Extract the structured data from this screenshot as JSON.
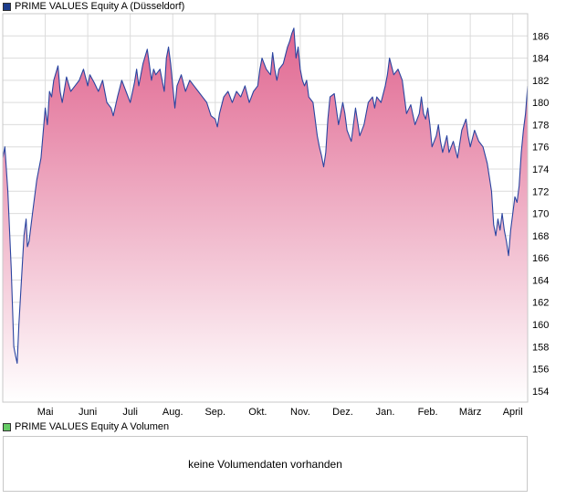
{
  "legend_price": {
    "label": "PRIME VALUES Equity A (Düsseldorf)",
    "color": "#1c3c8c"
  },
  "legend_volume": {
    "label": "PRIME VALUES Equity A Volumen",
    "color": "#66cc66"
  },
  "volume_panel": {
    "message": "keine Volumendaten vorhanden"
  },
  "colors": {
    "line": "#2a44a0",
    "fill_top": "#e06690",
    "fill_bottom": "#ffffff",
    "grid": "#dcdcdc",
    "frame": "#c8c8c8"
  },
  "chart_data": {
    "type": "area",
    "title": "PRIME VALUES Equity A (Düsseldorf)",
    "xlabel": "",
    "ylabel": "",
    "ylim": [
      153,
      188
    ],
    "y_ticks": [
      154,
      156,
      158,
      160,
      162,
      164,
      166,
      168,
      170,
      172,
      174,
      176,
      178,
      180,
      182,
      184,
      186
    ],
    "x_range": [
      0,
      12.35
    ],
    "x_ticks": [
      {
        "label": "Mai",
        "x": 1
      },
      {
        "label": "Juni",
        "x": 2
      },
      {
        "label": "Juli",
        "x": 3
      },
      {
        "label": "Aug.",
        "x": 4
      },
      {
        "label": "Sep.",
        "x": 5
      },
      {
        "label": "Okt.",
        "x": 6
      },
      {
        "label": "Nov.",
        "x": 7
      },
      {
        "label": "Dez.",
        "x": 8
      },
      {
        "label": "Jan.",
        "x": 9
      },
      {
        "label": "Feb.",
        "x": 10
      },
      {
        "label": "März",
        "x": 11
      },
      {
        "label": "April",
        "x": 12
      }
    ],
    "grid": true,
    "series": [
      {
        "name": "PRIME VALUES Equity A",
        "points": [
          [
            0.0,
            175.0
          ],
          [
            0.05,
            176.0
          ],
          [
            0.12,
            172.0
          ],
          [
            0.2,
            165.0
          ],
          [
            0.26,
            158.0
          ],
          [
            0.3,
            157.2
          ],
          [
            0.34,
            156.5
          ],
          [
            0.38,
            160.0
          ],
          [
            0.44,
            164.0
          ],
          [
            0.5,
            168.0
          ],
          [
            0.55,
            169.5
          ],
          [
            0.58,
            167.0
          ],
          [
            0.62,
            167.5
          ],
          [
            0.7,
            170.0
          ],
          [
            0.8,
            173.0
          ],
          [
            0.9,
            175.0
          ],
          [
            1.0,
            179.5
          ],
          [
            1.05,
            178.0
          ],
          [
            1.1,
            181.0
          ],
          [
            1.15,
            180.5
          ],
          [
            1.2,
            182.0
          ],
          [
            1.3,
            183.3
          ],
          [
            1.35,
            181.0
          ],
          [
            1.4,
            180.0
          ],
          [
            1.5,
            182.3
          ],
          [
            1.6,
            181.0
          ],
          [
            1.7,
            181.5
          ],
          [
            1.8,
            182.0
          ],
          [
            1.9,
            183.0
          ],
          [
            2.0,
            181.5
          ],
          [
            2.05,
            182.5
          ],
          [
            2.15,
            181.8
          ],
          [
            2.25,
            181.0
          ],
          [
            2.35,
            182.0
          ],
          [
            2.45,
            180.0
          ],
          [
            2.55,
            179.5
          ],
          [
            2.6,
            178.8
          ],
          [
            2.7,
            180.5
          ],
          [
            2.8,
            182.0
          ],
          [
            2.9,
            181.0
          ],
          [
            3.0,
            180.0
          ],
          [
            3.1,
            181.8
          ],
          [
            3.15,
            183.0
          ],
          [
            3.2,
            181.5
          ],
          [
            3.3,
            183.5
          ],
          [
            3.4,
            184.8
          ],
          [
            3.5,
            182.0
          ],
          [
            3.55,
            183.0
          ],
          [
            3.6,
            182.5
          ],
          [
            3.7,
            183.0
          ],
          [
            3.8,
            181.0
          ],
          [
            3.85,
            184.0
          ],
          [
            3.9,
            185.0
          ],
          [
            3.95,
            183.5
          ],
          [
            4.0,
            181.5
          ],
          [
            4.05,
            179.5
          ],
          [
            4.1,
            181.5
          ],
          [
            4.2,
            182.5
          ],
          [
            4.3,
            181.0
          ],
          [
            4.4,
            182.0
          ],
          [
            4.5,
            181.5
          ],
          [
            4.6,
            181.0
          ],
          [
            4.7,
            180.5
          ],
          [
            4.8,
            180.0
          ],
          [
            4.9,
            178.8
          ],
          [
            5.0,
            178.5
          ],
          [
            5.05,
            177.8
          ],
          [
            5.1,
            179.0
          ],
          [
            5.2,
            180.5
          ],
          [
            5.3,
            181.0
          ],
          [
            5.4,
            180.0
          ],
          [
            5.5,
            181.0
          ],
          [
            5.6,
            180.5
          ],
          [
            5.7,
            181.5
          ],
          [
            5.8,
            180.0
          ],
          [
            5.9,
            181.0
          ],
          [
            6.0,
            181.5
          ],
          [
            6.05,
            183.0
          ],
          [
            6.1,
            184.0
          ],
          [
            6.2,
            183.0
          ],
          [
            6.3,
            182.5
          ],
          [
            6.35,
            184.5
          ],
          [
            6.4,
            183.0
          ],
          [
            6.45,
            182.0
          ],
          [
            6.5,
            183.0
          ],
          [
            6.6,
            183.5
          ],
          [
            6.7,
            185.0
          ],
          [
            6.75,
            185.5
          ],
          [
            6.8,
            186.2
          ],
          [
            6.85,
            186.7
          ],
          [
            6.9,
            184.0
          ],
          [
            6.95,
            185.0
          ],
          [
            7.0,
            183.0
          ],
          [
            7.05,
            182.0
          ],
          [
            7.1,
            181.5
          ],
          [
            7.15,
            182.0
          ],
          [
            7.2,
            180.5
          ],
          [
            7.3,
            180.0
          ],
          [
            7.4,
            177.0
          ],
          [
            7.45,
            176.0
          ],
          [
            7.5,
            175.2
          ],
          [
            7.55,
            174.2
          ],
          [
            7.6,
            175.5
          ],
          [
            7.65,
            178.5
          ],
          [
            7.7,
            180.5
          ],
          [
            7.8,
            180.8
          ],
          [
            7.9,
            178.0
          ],
          [
            8.0,
            180.0
          ],
          [
            8.05,
            179.0
          ],
          [
            8.1,
            177.5
          ],
          [
            8.2,
            176.5
          ],
          [
            8.3,
            179.5
          ],
          [
            8.4,
            177.0
          ],
          [
            8.5,
            178.0
          ],
          [
            8.6,
            180.0
          ],
          [
            8.7,
            180.5
          ],
          [
            8.75,
            179.5
          ],
          [
            8.8,
            180.5
          ],
          [
            8.9,
            180.0
          ],
          [
            9.0,
            181.5
          ],
          [
            9.05,
            182.5
          ],
          [
            9.1,
            184.0
          ],
          [
            9.2,
            182.5
          ],
          [
            9.3,
            183.0
          ],
          [
            9.4,
            182.0
          ],
          [
            9.45,
            180.5
          ],
          [
            9.5,
            179.0
          ],
          [
            9.6,
            179.8
          ],
          [
            9.7,
            178.0
          ],
          [
            9.8,
            179.0
          ],
          [
            9.85,
            180.5
          ],
          [
            9.9,
            179.0
          ],
          [
            9.95,
            178.5
          ],
          [
            10.0,
            179.5
          ],
          [
            10.05,
            178.0
          ],
          [
            10.1,
            176.0
          ],
          [
            10.2,
            177.0
          ],
          [
            10.25,
            178.0
          ],
          [
            10.3,
            176.5
          ],
          [
            10.35,
            175.5
          ],
          [
            10.45,
            177.0
          ],
          [
            10.5,
            175.5
          ],
          [
            10.6,
            176.5
          ],
          [
            10.7,
            175.0
          ],
          [
            10.8,
            177.5
          ],
          [
            10.9,
            178.5
          ],
          [
            10.95,
            177.0
          ],
          [
            11.0,
            176.0
          ],
          [
            11.1,
            177.5
          ],
          [
            11.2,
            176.5
          ],
          [
            11.3,
            176.0
          ],
          [
            11.4,
            174.5
          ],
          [
            11.5,
            172.0
          ],
          [
            11.55,
            169.0
          ],
          [
            11.6,
            168.0
          ],
          [
            11.65,
            169.5
          ],
          [
            11.7,
            168.5
          ],
          [
            11.75,
            170.0
          ],
          [
            11.8,
            168.5
          ],
          [
            11.85,
            167.5
          ],
          [
            11.9,
            166.2
          ],
          [
            11.95,
            168.5
          ],
          [
            12.0,
            170.0
          ],
          [
            12.05,
            171.5
          ],
          [
            12.1,
            171.0
          ],
          [
            12.15,
            172.5
          ],
          [
            12.2,
            175.5
          ],
          [
            12.25,
            177.5
          ],
          [
            12.3,
            179.0
          ],
          [
            12.35,
            181.5
          ]
        ]
      }
    ]
  }
}
